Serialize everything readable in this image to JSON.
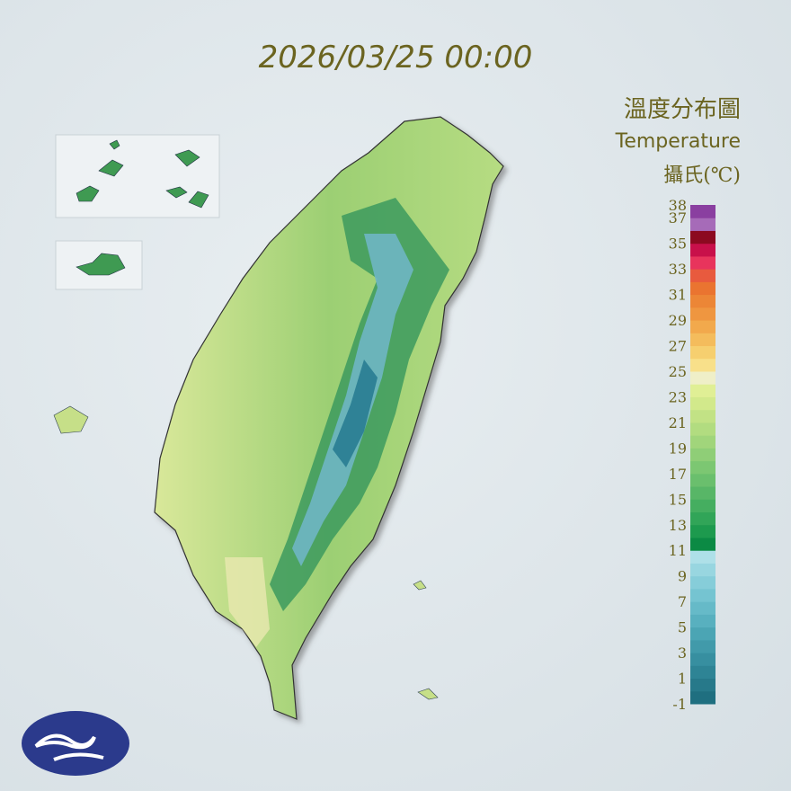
{
  "title": "2026/03/25 00:00",
  "legend": {
    "title": "溫度分布圖",
    "subtitle": "Temperature",
    "unit": "攝氏(℃)",
    "range": [
      -1,
      38
    ],
    "ticks": [
      38,
      37,
      35,
      33,
      31,
      29,
      27,
      25,
      23,
      21,
      19,
      17,
      15,
      13,
      11,
      9,
      7,
      5,
      3,
      1,
      -1
    ],
    "colors": [
      "#1f6f80",
      "#27798a",
      "#2e8495",
      "#378fa0",
      "#419aaa",
      "#4ba5b4",
      "#58b0bf",
      "#66bac8",
      "#75c4d1",
      "#86cdd9",
      "#98d6e0",
      "#aee0e8",
      "#0b8a44",
      "#1d9a4e",
      "#31a558",
      "#45ae60",
      "#58b667",
      "#6abf6d",
      "#7cc772",
      "#8fce77",
      "#a1d57b",
      "#b2dc80",
      "#c2e285",
      "#d2e98b",
      "#e0ef95",
      "#efefc8",
      "#f8e08a",
      "#f6cf6f",
      "#f4bc5c",
      "#f2a94c",
      "#ef9640",
      "#ec8636",
      "#ea7430",
      "#e85a3e",
      "#e8345c",
      "#c8104a",
      "#8c0a20",
      "#a66bb8",
      "#8a3fa0"
    ]
  }
}
